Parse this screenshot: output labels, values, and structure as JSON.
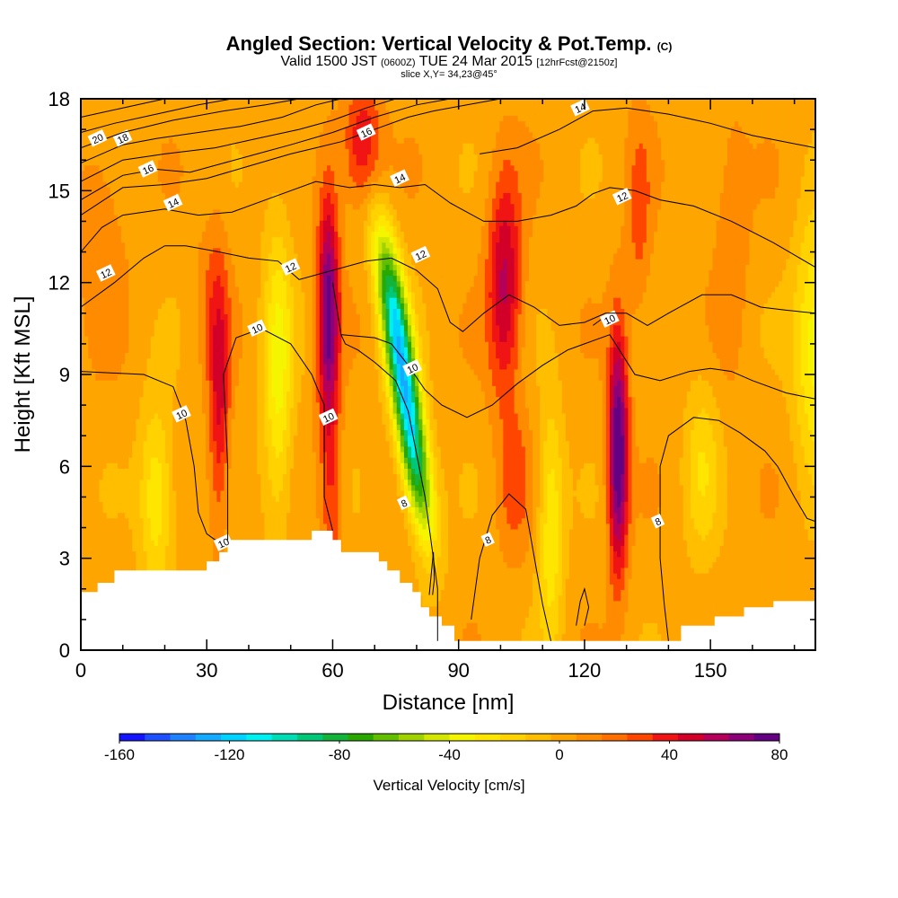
{
  "chart_data": {
    "type": "heatmap",
    "title": "Angled Section: Vertical Velocity & Pot.Temp.",
    "title_unit": "(C)",
    "subtitle_prefix": "Valid 1500 JST",
    "subtitle_utc": "(0600Z)",
    "subtitle_date": "TUE 24 Mar 2015",
    "subtitle_fcst": "[12hrFcst@2150z]",
    "slice": "slice X,Y= 34,23@45°",
    "xlabel": "Distance [nm]",
    "ylabel": "Height [Kft MSL]",
    "xlim": [
      0,
      175
    ],
    "ylim": [
      0,
      18
    ],
    "xticks": [
      0,
      30,
      60,
      90,
      120,
      150
    ],
    "yticks": [
      0,
      3,
      6,
      9,
      12,
      15,
      18
    ],
    "background_w": 5,
    "colorbar": {
      "title": "Vertical Velocity [cm/s]",
      "min": -160,
      "max": 80,
      "step": 10,
      "labels": [
        -160,
        -120,
        -80,
        -40,
        0,
        40,
        80
      ],
      "colors": [
        "#1414ff",
        "#1e50ff",
        "#1e82ff",
        "#14aaff",
        "#00d2ff",
        "#00f0f0",
        "#00dcb4",
        "#00c878",
        "#14b43c",
        "#28a800",
        "#64be00",
        "#a0d200",
        "#d2e600",
        "#f5f500",
        "#ffe600",
        "#ffd200",
        "#ffbe00",
        "#ffa500",
        "#ff8c00",
        "#ff6e00",
        "#ff4600",
        "#f01414",
        "#d20028",
        "#b4005a",
        "#8c0078",
        "#640082"
      ]
    },
    "velocity_features": [
      {
        "x": 33,
        "z": 8.5,
        "sx": 2.5,
        "sz": 4.5,
        "w": 38
      },
      {
        "x": 30,
        "z": 11.5,
        "sx": 3,
        "sz": 2.5,
        "w": 10
      },
      {
        "x": 59,
        "z": 11,
        "sx": 2.5,
        "sz": 4,
        "w": 70
      },
      {
        "x": 60,
        "z": 4.5,
        "sx": 2.5,
        "sz": 3,
        "w": 22
      },
      {
        "x": 67,
        "z": 16.5,
        "sx": 4.5,
        "sz": 2,
        "w": 38
      },
      {
        "x": 101,
        "z": 12,
        "sx": 4,
        "sz": 3.5,
        "w": 48
      },
      {
        "x": 103,
        "z": 5.5,
        "sx": 4,
        "sz": 2.5,
        "w": 18
      },
      {
        "x": 128,
        "z": 6.5,
        "sx": 2.3,
        "sz": 3.8,
        "w": 82
      },
      {
        "x": 133,
        "z": 14,
        "sx": 3,
        "sz": 3.5,
        "w": 18
      },
      {
        "x": 155,
        "z": 13.5,
        "sx": 4,
        "sz": 4,
        "w": 15
      },
      {
        "x": 18,
        "z": 5,
        "sx": 4,
        "sz": 3,
        "w": -35
      },
      {
        "x": 47,
        "z": 9,
        "sx": 3.5,
        "sz": 5,
        "w": -38
      },
      {
        "x": 175,
        "z": 10,
        "sx": 5,
        "sz": 4,
        "w": -42
      },
      {
        "x": 112,
        "z": 4,
        "sx": 3,
        "sz": 4,
        "w": -35
      },
      {
        "x": 148,
        "z": 6,
        "sx": 4,
        "sz": 3,
        "w": -22
      },
      {
        "x": 5,
        "z": 14,
        "sx": 6,
        "sz": 4,
        "w": 12
      }
    ],
    "jet_feature": {
      "x_top": 71,
      "z_top": 14.5,
      "x_bottom": 83,
      "z_bottom": 3,
      "half_width": 3.5,
      "w": -125
    },
    "terrain": [
      [
        0,
        1.9
      ],
      [
        4,
        1.9
      ],
      [
        4,
        2.2
      ],
      [
        8,
        2.2
      ],
      [
        8,
        2.6
      ],
      [
        30,
        2.6
      ],
      [
        30,
        2.9
      ],
      [
        33,
        2.9
      ],
      [
        33,
        3.2
      ],
      [
        35,
        3.2
      ],
      [
        35,
        3.6
      ],
      [
        55,
        3.6
      ],
      [
        55,
        3.9
      ],
      [
        60,
        3.9
      ],
      [
        60,
        3.6
      ],
      [
        62,
        3.6
      ],
      [
        62,
        3.2
      ],
      [
        71,
        3.2
      ],
      [
        71,
        2.9
      ],
      [
        73,
        2.9
      ],
      [
        73,
        2.6
      ],
      [
        76,
        2.6
      ],
      [
        76,
        2.2
      ],
      [
        79,
        2.2
      ],
      [
        79,
        1.9
      ],
      [
        81,
        1.9
      ],
      [
        81,
        1.4
      ],
      [
        83,
        1.4
      ],
      [
        83,
        1.1
      ],
      [
        86,
        1.1
      ],
      [
        86,
        0.8
      ],
      [
        89,
        0.8
      ],
      [
        89,
        0.3
      ],
      [
        113,
        0.3
      ],
      [
        113,
        0.3
      ],
      [
        143,
        0.3
      ],
      [
        143,
        0.8
      ],
      [
        151,
        0.8
      ],
      [
        151,
        1.1
      ],
      [
        158,
        1.1
      ],
      [
        158,
        1.4
      ],
      [
        165,
        1.4
      ],
      [
        165,
        1.6
      ],
      [
        175,
        1.6
      ]
    ],
    "theta_contours": [
      {
        "label": "8",
        "points": [
          [
            85,
            0.3
          ],
          [
            85,
            2
          ],
          [
            82,
            5
          ],
          [
            78,
            7.8
          ],
          [
            75,
            8.8
          ],
          [
            70,
            9.4
          ],
          [
            66,
            9.8
          ],
          [
            63,
            10
          ],
          [
            62,
            10.3
          ],
          [
            60,
            12
          ]
        ],
        "labels": [
          [
            77,
            4.8
          ]
        ]
      },
      {
        "label": "8",
        "points": [
          [
            93,
            1
          ],
          [
            95,
            3
          ],
          [
            98,
            4.4
          ],
          [
            102,
            5.1
          ],
          [
            106,
            4.6
          ],
          [
            110,
            1.5
          ],
          [
            112,
            0.3
          ]
        ],
        "labels": [
          [
            97,
            3.6
          ]
        ]
      },
      {
        "label": "8",
        "points": [
          [
            140,
            0.3
          ],
          [
            139,
            1.5
          ],
          [
            138,
            3
          ],
          [
            138,
            4.5
          ],
          [
            138,
            6
          ],
          [
            140,
            7
          ],
          [
            146,
            7.6
          ],
          [
            152,
            7.5
          ],
          [
            157,
            7.1
          ],
          [
            163,
            6.5
          ],
          [
            166,
            6
          ],
          [
            170,
            5
          ],
          [
            173,
            4.3
          ],
          [
            175,
            4.2
          ]
        ],
        "labels": [
          [
            137.5,
            4.2
          ]
        ]
      },
      {
        "label": "10",
        "points": [
          [
            0,
            9.1
          ],
          [
            15,
            9
          ],
          [
            22,
            8.6
          ],
          [
            25,
            7.5
          ],
          [
            27,
            6
          ],
          [
            28,
            4.5
          ],
          [
            30,
            3.8
          ],
          [
            32,
            3.6
          ],
          [
            35,
            3.6
          ]
        ],
        "labels": [
          [
            24,
            7.7
          ],
          [
            34,
            3.5
          ]
        ]
      },
      {
        "label": "10",
        "points": [
          [
            35,
            3.6
          ],
          [
            35,
            6
          ],
          [
            34,
            9
          ],
          [
            37,
            10.2
          ],
          [
            43,
            10.5
          ],
          [
            50,
            10
          ],
          [
            55,
            9
          ],
          [
            58,
            8
          ],
          [
            58,
            5
          ],
          [
            60,
            3.9
          ]
        ],
        "labels": [
          [
            42,
            10.5
          ],
          [
            59,
            7.6
          ]
        ]
      },
      {
        "label": "10",
        "points": [
          [
            62,
            10.3
          ],
          [
            70,
            10.2
          ],
          [
            74,
            10
          ],
          [
            78,
            9.3
          ],
          [
            82,
            8.5
          ],
          [
            86,
            8
          ],
          [
            92,
            7.6
          ],
          [
            98,
            8
          ],
          [
            104,
            8.7
          ],
          [
            110,
            9.3
          ],
          [
            116,
            9.8
          ],
          [
            120,
            10
          ],
          [
            126,
            10.3
          ],
          [
            132,
            9
          ],
          [
            138,
            8.8
          ],
          [
            145,
            9.1
          ],
          [
            150,
            9.2
          ],
          [
            155,
            9.1
          ],
          [
            160,
            8.8
          ],
          [
            168,
            8.4
          ],
          [
            175,
            8.2
          ]
        ],
        "labels": [
          [
            79,
            9.2
          ]
        ]
      },
      {
        "label": "10",
        "points": [
          [
            122,
            10.6
          ],
          [
            124,
            10.8
          ]
        ],
        "labels": [
          [
            126,
            10.8
          ]
        ]
      },
      {
        "label": "12",
        "points": [
          [
            0,
            11.2
          ],
          [
            8,
            12
          ],
          [
            15,
            12.8
          ],
          [
            20,
            13.2
          ],
          [
            25,
            13.2
          ],
          [
            33,
            13
          ],
          [
            40,
            12.8
          ],
          [
            47,
            12.7
          ],
          [
            52,
            12.1
          ],
          [
            60,
            12.4
          ],
          [
            68,
            12.7
          ],
          [
            74,
            12.8
          ],
          [
            80,
            12.4
          ],
          [
            85,
            11.8
          ],
          [
            88,
            10.7
          ],
          [
            91,
            10.4
          ],
          [
            96,
            11
          ],
          [
            102,
            11.6
          ],
          [
            108,
            11.2
          ],
          [
            114,
            10.6
          ],
          [
            120,
            10.7
          ],
          [
            125,
            11
          ],
          [
            130,
            11
          ],
          [
            135,
            10.6
          ],
          [
            140,
            11
          ],
          [
            148,
            11.6
          ],
          [
            155,
            11.6
          ],
          [
            162,
            11.2
          ],
          [
            168,
            11.1
          ],
          [
            175,
            11
          ]
        ],
        "labels": [
          [
            6,
            12.3
          ],
          [
            50,
            12.5
          ],
          [
            81,
            12.9
          ]
        ]
      },
      {
        "label": "12",
        "points": [
          [
            88,
            14.6
          ],
          [
            96,
            14
          ],
          [
            104,
            14
          ],
          [
            112,
            14.2
          ],
          [
            118,
            14.5
          ],
          [
            122,
            14.9
          ],
          [
            126,
            15.1
          ],
          [
            132,
            15
          ],
          [
            138,
            14.7
          ],
          [
            146,
            14.5
          ],
          [
            155,
            14
          ],
          [
            165,
            13.3
          ],
          [
            175,
            12.5
          ]
        ],
        "labels": [
          [
            129,
            14.8
          ]
        ]
      },
      {
        "label": "14",
        "points": [
          [
            0,
            13
          ],
          [
            5,
            13.8
          ],
          [
            10,
            14.2
          ],
          [
            20,
            14.4
          ],
          [
            28,
            14.2
          ],
          [
            36,
            14.3
          ],
          [
            46,
            14.8
          ],
          [
            56,
            15.3
          ],
          [
            64,
            15.1
          ],
          [
            70,
            15.2
          ],
          [
            76,
            15.1
          ],
          [
            82,
            15.2
          ],
          [
            88,
            14.6
          ]
        ],
        "labels": [
          [
            22,
            14.6
          ],
          [
            76,
            15.4
          ]
        ]
      },
      {
        "label": "14",
        "points": [
          [
            95,
            16.2
          ],
          [
            104,
            16.4
          ],
          [
            114,
            17
          ],
          [
            122,
            17.6
          ],
          [
            130,
            17.7
          ],
          [
            140,
            17.5
          ],
          [
            150,
            17.2
          ],
          [
            160,
            16.8
          ],
          [
            175,
            16.4
          ]
        ],
        "labels": [
          [
            119,
            17.7
          ]
        ]
      },
      {
        "label": "16",
        "points": [
          [
            0,
            14.2
          ],
          [
            10,
            15.1
          ],
          [
            20,
            15.2
          ],
          [
            30,
            15.4
          ],
          [
            40,
            15.8
          ],
          [
            50,
            16.2
          ],
          [
            56,
            16.4
          ],
          [
            62,
            16.6
          ],
          [
            66,
            16.8
          ],
          [
            72,
            17.1
          ],
          [
            78,
            17.4
          ],
          [
            84,
            17.6
          ],
          [
            92,
            17.8
          ],
          [
            100,
            18
          ]
        ],
        "labels": [
          [
            68,
            16.9
          ]
        ]
      },
      {
        "label": "16",
        "points": [
          [
            0,
            14.7
          ],
          [
            10,
            15.5
          ],
          [
            18,
            15.7
          ],
          [
            26,
            15.6
          ],
          [
            34,
            15.9
          ],
          [
            42,
            16.2
          ],
          [
            50,
            16.5
          ],
          [
            60,
            16.9
          ],
          [
            70,
            17.4
          ],
          [
            80,
            17.8
          ],
          [
            88,
            18
          ]
        ],
        "labels": [
          [
            16,
            15.7
          ]
        ]
      },
      {
        "label": "",
        "points": [
          [
            0,
            15.3
          ],
          [
            10,
            16
          ],
          [
            20,
            16.2
          ],
          [
            32,
            16.4
          ],
          [
            42,
            16.7
          ],
          [
            52,
            17
          ],
          [
            60,
            17.3
          ],
          [
            68,
            17.7
          ],
          [
            75,
            18
          ]
        ],
        "labels": []
      },
      {
        "label": "18",
        "points": [
          [
            0,
            15.9
          ],
          [
            10,
            16.5
          ],
          [
            18,
            16.7
          ],
          [
            28,
            16.9
          ],
          [
            38,
            17.1
          ],
          [
            48,
            17.4
          ],
          [
            56,
            17.8
          ],
          [
            62,
            18
          ]
        ],
        "labels": [
          [
            10,
            16.7
          ]
        ]
      },
      {
        "label": "",
        "points": [
          [
            0,
            16.4
          ],
          [
            10,
            16.9
          ],
          [
            22,
            17.3
          ],
          [
            34,
            17.6
          ],
          [
            44,
            17.8
          ],
          [
            52,
            18
          ]
        ],
        "labels": []
      },
      {
        "label": "20",
        "points": [
          [
            0,
            16.9
          ],
          [
            8,
            17.2
          ],
          [
            18,
            17.5
          ],
          [
            28,
            17.8
          ],
          [
            36,
            18
          ]
        ],
        "labels": [
          [
            4,
            16.7
          ]
        ]
      },
      {
        "label": "",
        "points": [
          [
            0,
            17.4
          ],
          [
            10,
            17.7
          ],
          [
            20,
            18
          ]
        ],
        "labels": []
      },
      {
        "label": "",
        "points": [
          [
            118,
            0.8
          ],
          [
            119,
            1.6
          ],
          [
            120,
            2
          ],
          [
            121,
            1.4
          ],
          [
            120,
            0.8
          ]
        ],
        "labels": []
      },
      {
        "label": "",
        "points": [
          [
            83,
            1.8
          ],
          [
            83.5,
            2.5
          ],
          [
            84,
            3.2
          ],
          [
            84.2,
            2.3
          ],
          [
            83.8,
            1.8
          ]
        ],
        "labels": []
      }
    ]
  }
}
